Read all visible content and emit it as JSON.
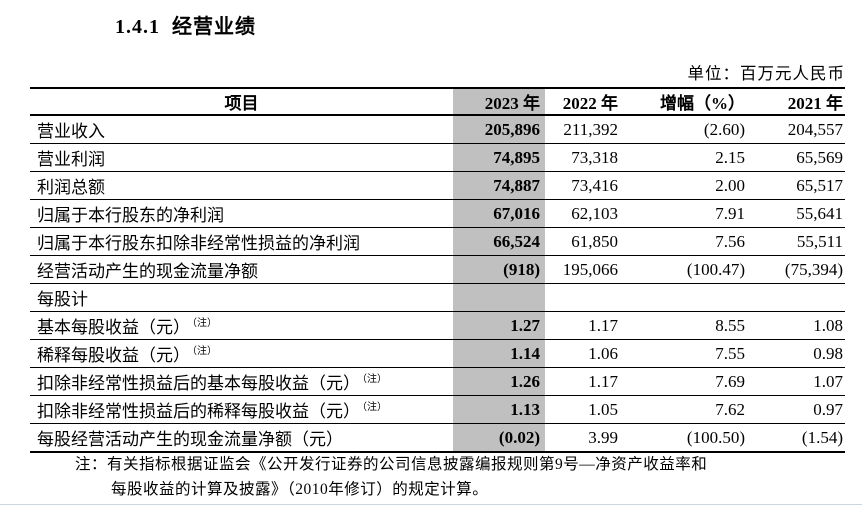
{
  "title": "1.4.1  经营业绩",
  "unit_note": "单位：百万元人民币",
  "colors": {
    "highlight": "#c0c0c0",
    "text": "#000000"
  },
  "table": {
    "columns": [
      "项目",
      "2023 年",
      "2022 年",
      "增幅（%）",
      "2021 年"
    ],
    "note_mark": "（注）",
    "rows": [
      {
        "label": "营业收入",
        "note": false,
        "section": false,
        "v2023": "205,896",
        "v2022": "211,392",
        "growth": "(2.60)",
        "v2021": "204,557"
      },
      {
        "label": "营业利润",
        "note": false,
        "section": false,
        "v2023": "74,895",
        "v2022": "73,318",
        "growth": "2.15",
        "v2021": "65,569"
      },
      {
        "label": "利润总额",
        "note": false,
        "section": false,
        "v2023": "74,887",
        "v2022": "73,416",
        "growth": "2.00",
        "v2021": "65,517"
      },
      {
        "label": "归属于本行股东的净利润",
        "note": false,
        "section": false,
        "v2023": "67,016",
        "v2022": "62,103",
        "growth": "7.91",
        "v2021": "55,641"
      },
      {
        "label": "归属于本行股东扣除非经常性损益的净利润",
        "note": false,
        "section": false,
        "v2023": "66,524",
        "v2022": "61,850",
        "growth": "7.56",
        "v2021": "55,511"
      },
      {
        "label": "经营活动产生的现金流量净额",
        "note": false,
        "section": false,
        "v2023": "(918)",
        "v2022": "195,066",
        "growth": "(100.47)",
        "v2021": "(75,394)"
      },
      {
        "label": "每股计",
        "note": false,
        "section": true,
        "v2023": "",
        "v2022": "",
        "growth": "",
        "v2021": ""
      },
      {
        "label": "基本每股收益（元）",
        "note": true,
        "section": false,
        "v2023": "1.27",
        "v2022": "1.17",
        "growth": "8.55",
        "v2021": "1.08"
      },
      {
        "label": "稀释每股收益（元）",
        "note": true,
        "section": false,
        "v2023": "1.14",
        "v2022": "1.06",
        "growth": "7.55",
        "v2021": "0.98"
      },
      {
        "label": "扣除非经常性损益后的基本每股收益（元）",
        "note": true,
        "section": false,
        "v2023": "1.26",
        "v2022": "1.17",
        "growth": "7.69",
        "v2021": "1.07"
      },
      {
        "label": "扣除非经常性损益后的稀释每股收益（元）",
        "note": true,
        "section": false,
        "v2023": "1.13",
        "v2022": "1.05",
        "growth": "7.62",
        "v2021": "0.97"
      },
      {
        "label": "每股经营活动产生的现金流量净额（元）",
        "note": false,
        "section": false,
        "v2023": "(0.02)",
        "v2022": "3.99",
        "growth": "(100.50)",
        "v2021": "(1.54)"
      }
    ]
  },
  "footnote": {
    "line1": "注：有关指标根据证监会《公开发行证券的公司信息披露编报规则第9号—净资产收益率和",
    "line2": "每股收益的计算及披露》（2010年修订）的规定计算。"
  }
}
